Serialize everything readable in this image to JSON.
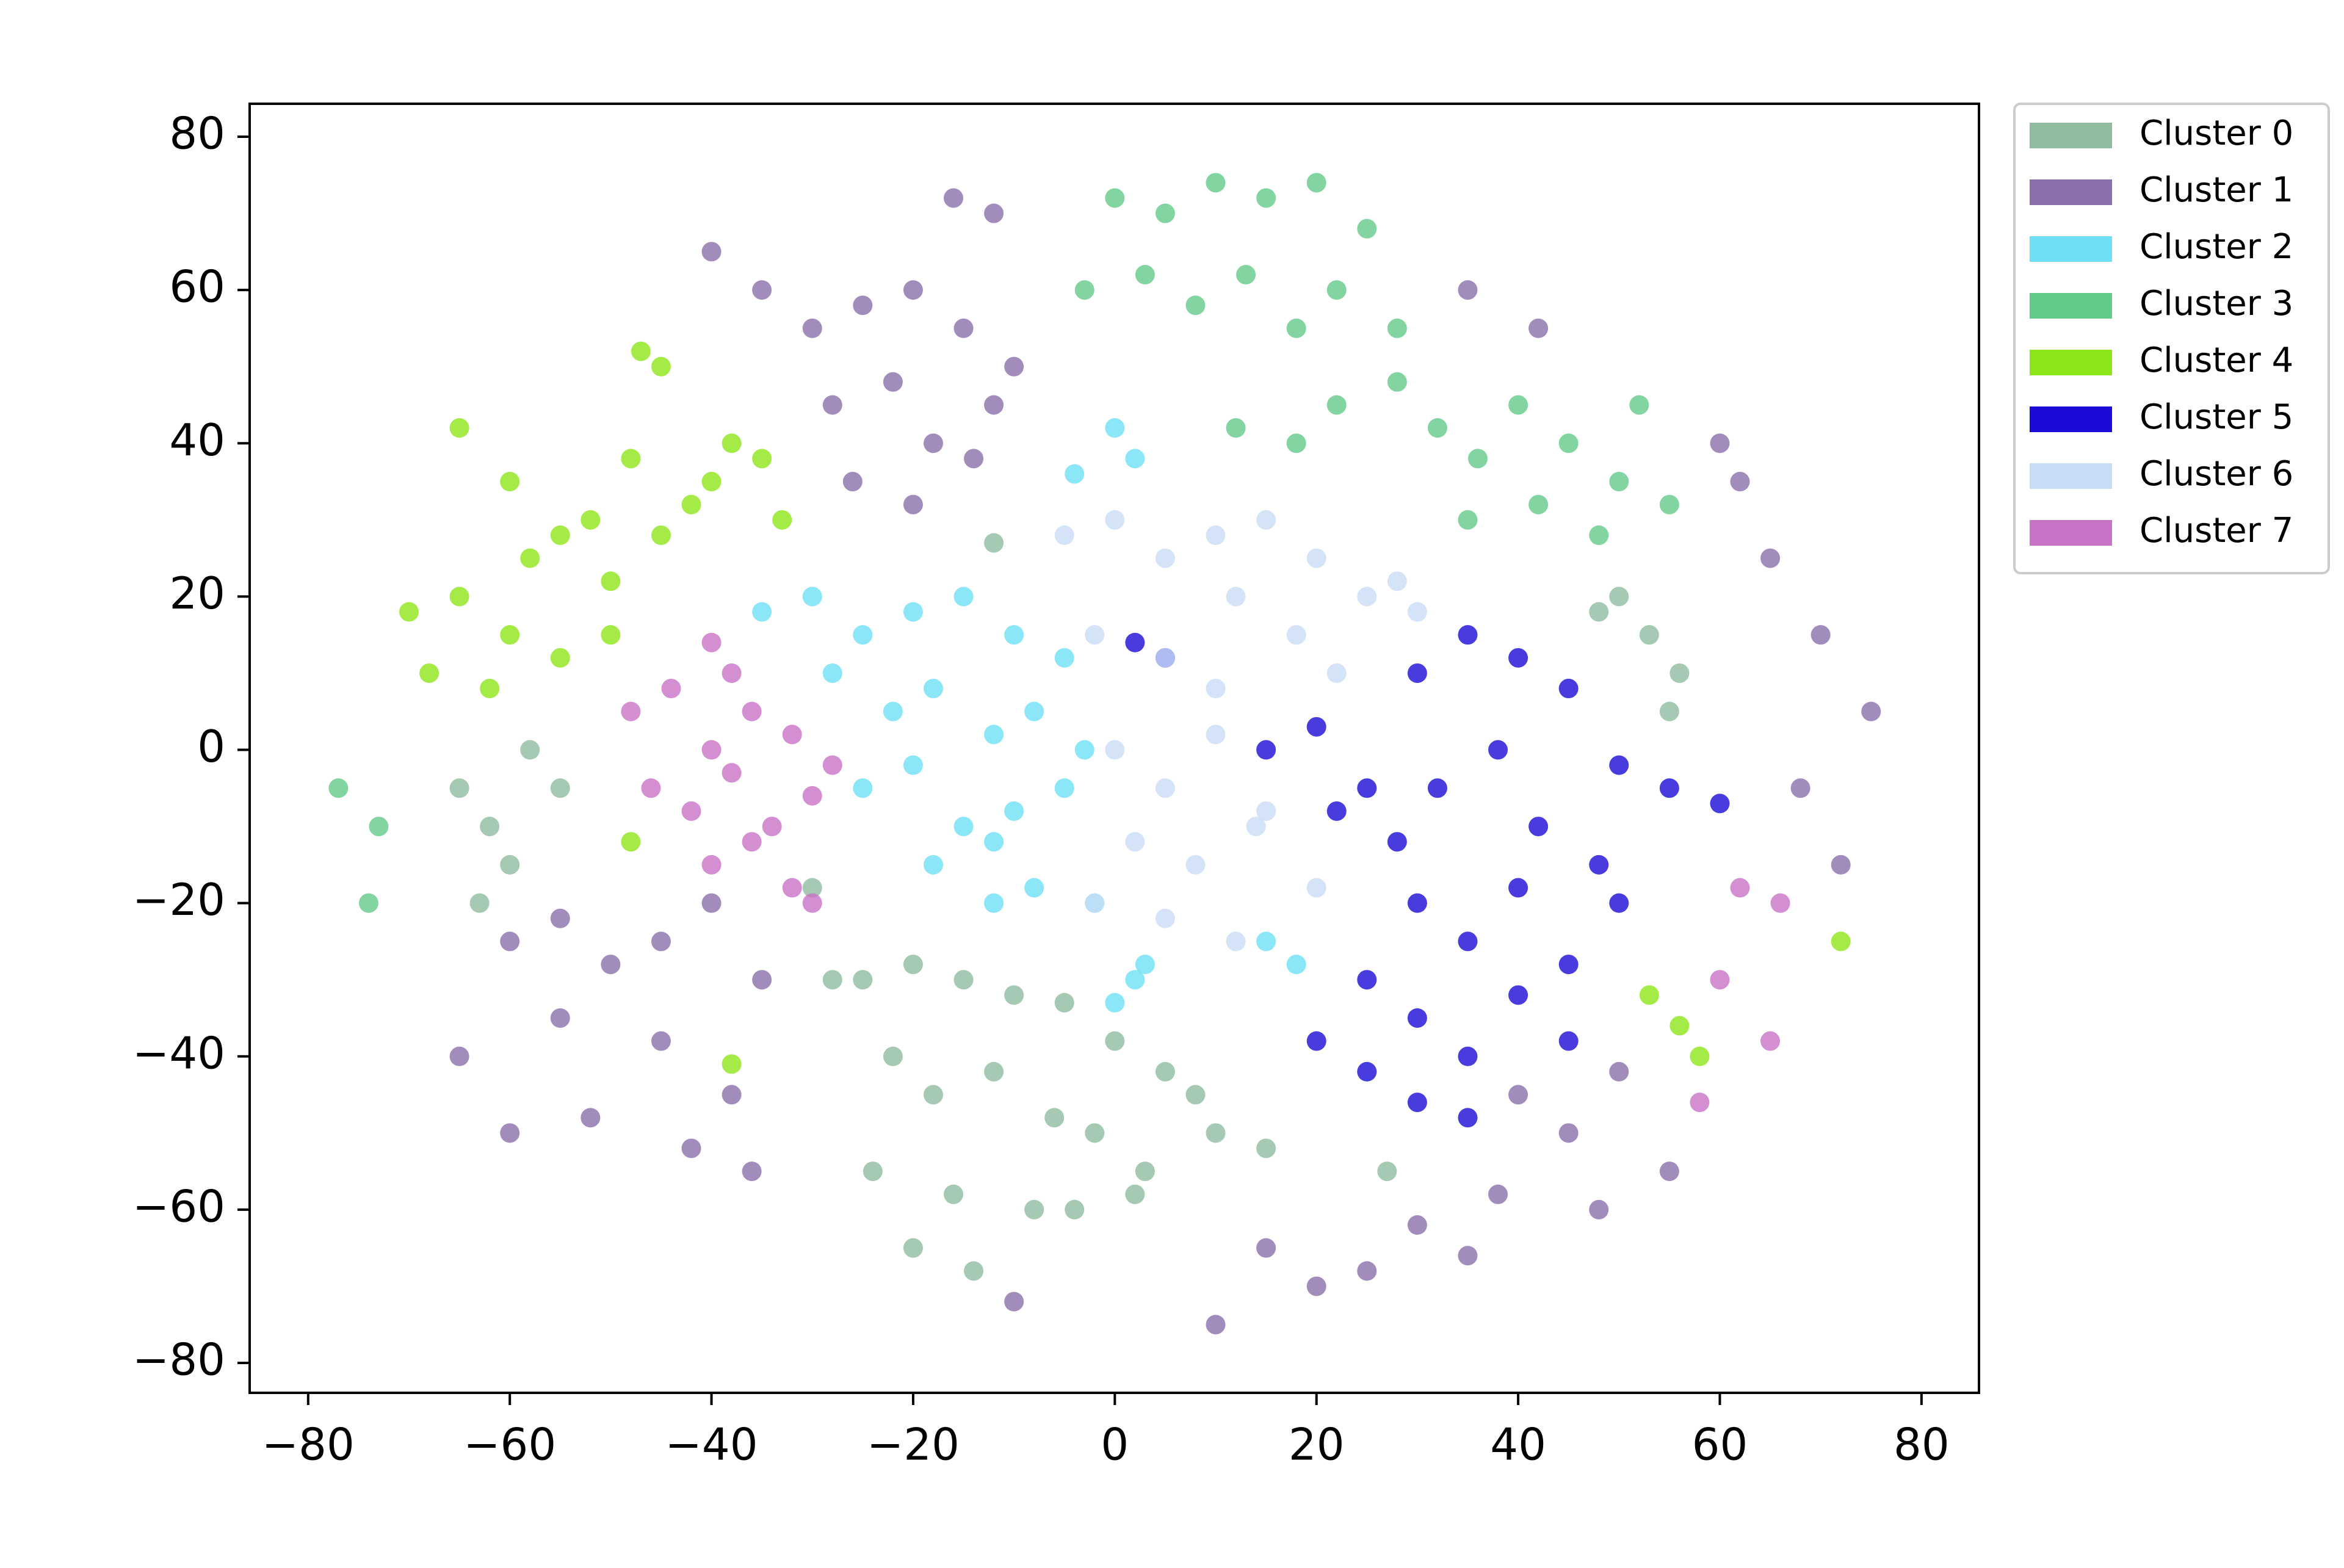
{
  "chart_data": {
    "type": "scatter",
    "xlim": [
      -85.8,
      85.7
    ],
    "ylim": [
      -83.9,
      84.3
    ],
    "xticks": [
      {
        "value": -80,
        "label": "−80"
      },
      {
        "value": -60,
        "label": "−60"
      },
      {
        "value": -40,
        "label": "−40"
      },
      {
        "value": -20,
        "label": "−20"
      },
      0,
      20,
      40,
      60,
      80
    ],
    "yticks": [
      {
        "value": -80,
        "label": "−80"
      },
      {
        "value": -60,
        "label": "−60"
      },
      {
        "value": -40,
        "label": "−40"
      },
      {
        "value": -20,
        "label": "−20"
      },
      0,
      20,
      40,
      60,
      80
    ],
    "grid": false,
    "legend": "outside-upper-right",
    "series": [
      {
        "name": "Cluster 0",
        "color": "#8fbc9f",
        "x": [
          -25,
          -20,
          -15,
          -10,
          -5,
          0,
          5,
          8,
          -22,
          -18,
          -12,
          -6,
          -2,
          3,
          -24,
          -16,
          -8,
          -20,
          -14,
          -4,
          2,
          10,
          15,
          -28,
          -65,
          -62,
          -58,
          -55,
          -60,
          -63,
          50,
          53,
          56,
          48,
          55,
          -12,
          -30,
          27
        ],
        "values": [
          -30,
          -28,
          -30,
          -32,
          -33,
          -38,
          -42,
          -45,
          -40,
          -45,
          -42,
          -48,
          -50,
          -55,
          -55,
          -58,
          -60,
          -65,
          -68,
          -60,
          -58,
          -50,
          -52,
          -30,
          -5,
          -10,
          0,
          -5,
          -15,
          -20,
          20,
          15,
          10,
          18,
          5,
          27,
          -18,
          -55
        ]
      },
      {
        "name": "Cluster 1",
        "color": "#8b6fab",
        "x": [
          -30,
          -25,
          -20,
          -15,
          -10,
          -28,
          -22,
          -18,
          -12,
          -26,
          -20,
          -14,
          -16,
          -12,
          -40,
          -35,
          -60,
          -55,
          -50,
          -45,
          -40,
          -35,
          -65,
          -55,
          -45,
          -38,
          -60,
          -52,
          -42,
          -36,
          40,
          45,
          50,
          55,
          38,
          48,
          15,
          20,
          25,
          30,
          35,
          60,
          65,
          70,
          75,
          62,
          68,
          72,
          35,
          42,
          -10,
          10
        ],
        "values": [
          55,
          58,
          60,
          55,
          50,
          45,
          48,
          40,
          45,
          35,
          32,
          38,
          72,
          70,
          65,
          60,
          -25,
          -22,
          -28,
          -25,
          -20,
          -30,
          -40,
          -35,
          -38,
          -45,
          -50,
          -48,
          -52,
          -55,
          -45,
          -50,
          -42,
          -55,
          -58,
          -60,
          -65,
          -70,
          -68,
          -62,
          -66,
          40,
          25,
          15,
          5,
          35,
          -5,
          -15,
          60,
          55,
          -72,
          -75
        ]
      },
      {
        "name": "Cluster 2",
        "color": "#6ee0f5",
        "x": [
          -35,
          -30,
          -25,
          -20,
          -15,
          -10,
          -5,
          -28,
          -22,
          -18,
          -12,
          -8,
          -3,
          -25,
          -20,
          -15,
          -10,
          -5,
          -18,
          -12,
          -8,
          -2,
          0,
          2,
          -4,
          2,
          -12,
          0,
          3,
          15,
          18
        ],
        "values": [
          18,
          20,
          15,
          18,
          20,
          15,
          12,
          10,
          5,
          8,
          2,
          5,
          0,
          -5,
          -2,
          -10,
          -8,
          -5,
          -15,
          -12,
          -18,
          -20,
          42,
          38,
          36,
          -30,
          -20,
          -33,
          -28,
          -25,
          -28
        ]
      },
      {
        "name": "Cluster 3",
        "color": "#63c98a",
        "x": [
          0,
          5,
          10,
          15,
          20,
          25,
          -3,
          3,
          8,
          13,
          18,
          22,
          28,
          12,
          18,
          22,
          28,
          32,
          36,
          40,
          45,
          50,
          52,
          55,
          35,
          42,
          48,
          -77,
          -73,
          -74
        ],
        "values": [
          72,
          70,
          74,
          72,
          74,
          68,
          60,
          62,
          58,
          62,
          55,
          60,
          55,
          42,
          40,
          45,
          48,
          42,
          38,
          45,
          40,
          35,
          45,
          32,
          30,
          32,
          28,
          -5,
          -10,
          -20
        ]
      },
      {
        "name": "Cluster 4",
        "color": "#8de61a",
        "x": [
          -70,
          -65,
          -60,
          -55,
          -50,
          -45,
          -40,
          -35,
          -68,
          -62,
          -58,
          -52,
          -48,
          -42,
          -38,
          -33,
          -65,
          -60,
          -55,
          -50,
          -45,
          -47,
          -48,
          -38,
          53,
          56,
          58,
          72
        ],
        "values": [
          18,
          20,
          15,
          12,
          15,
          28,
          35,
          38,
          10,
          8,
          25,
          30,
          38,
          32,
          40,
          30,
          42,
          35,
          28,
          22,
          50,
          52,
          -12,
          -41,
          -32,
          -36,
          -40,
          -25
        ]
      },
      {
        "name": "Cluster 5",
        "color": "#1a0bd6",
        "x": [
          15,
          20,
          25,
          30,
          35,
          40,
          45,
          50,
          22,
          28,
          32,
          38,
          42,
          48,
          55,
          30,
          35,
          40,
          45,
          50,
          25,
          30,
          35,
          40,
          45,
          20,
          25,
          30,
          35,
          2,
          5,
          60
        ],
        "values": [
          0,
          3,
          -5,
          10,
          15,
          12,
          8,
          -2,
          -8,
          -12,
          -5,
          0,
          -10,
          -15,
          -5,
          -20,
          -25,
          -18,
          -28,
          -20,
          -30,
          -35,
          -40,
          -32,
          -38,
          -38,
          -42,
          -46,
          -48,
          14,
          12,
          -7
        ]
      },
      {
        "name": "Cluster 6",
        "color": "#c9dcf6",
        "x": [
          -5,
          0,
          5,
          10,
          15,
          20,
          25,
          30,
          -2,
          5,
          12,
          18,
          22,
          28,
          0,
          5,
          10,
          15,
          2,
          8,
          14,
          20,
          -2,
          5,
          12,
          10
        ],
        "values": [
          28,
          30,
          25,
          28,
          30,
          25,
          20,
          18,
          15,
          12,
          20,
          15,
          10,
          22,
          0,
          -5,
          2,
          -8,
          -12,
          -15,
          -10,
          -18,
          -20,
          -22,
          -25,
          8
        ]
      },
      {
        "name": "Cluster 7",
        "color": "#c873c6",
        "x": [
          -48,
          -44,
          -40,
          -36,
          -32,
          -28,
          -46,
          -42,
          -38,
          -34,
          -30,
          -40,
          -36,
          -32,
          -38,
          -30,
          62,
          66,
          60,
          65,
          58,
          -40
        ],
        "values": [
          5,
          8,
          0,
          5,
          2,
          -2,
          -5,
          -8,
          -3,
          -10,
          -6,
          -15,
          -12,
          -18,
          10,
          -20,
          -18,
          -20,
          -30,
          -38,
          -46,
          14
        ]
      }
    ]
  }
}
